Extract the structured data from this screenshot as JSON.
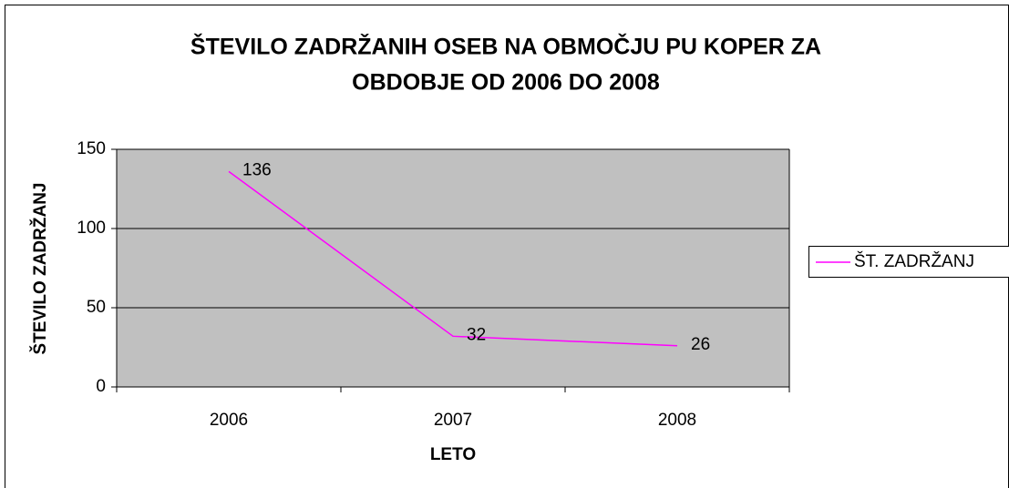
{
  "chart_data": {
    "type": "line",
    "title": [
      "ŠTEVILO ZADRŽANIH OSEB NA OBMOČJU PU KOPER ZA",
      "OBDOBJE OD 2006 DO 2008"
    ],
    "x_label": "LETO",
    "y_label": "ŠTEVILO ZADRŽANJ",
    "categories": [
      "2006",
      "2007",
      "2008"
    ],
    "series": [
      {
        "name": "ŠT. ZADRŽANJ",
        "color": "#ff00ff",
        "values": [
          136,
          32,
          26
        ]
      }
    ],
    "ylim": [
      0,
      150
    ],
    "yticks": [
      0,
      50,
      100,
      150
    ],
    "grid": true,
    "legend": "right"
  }
}
